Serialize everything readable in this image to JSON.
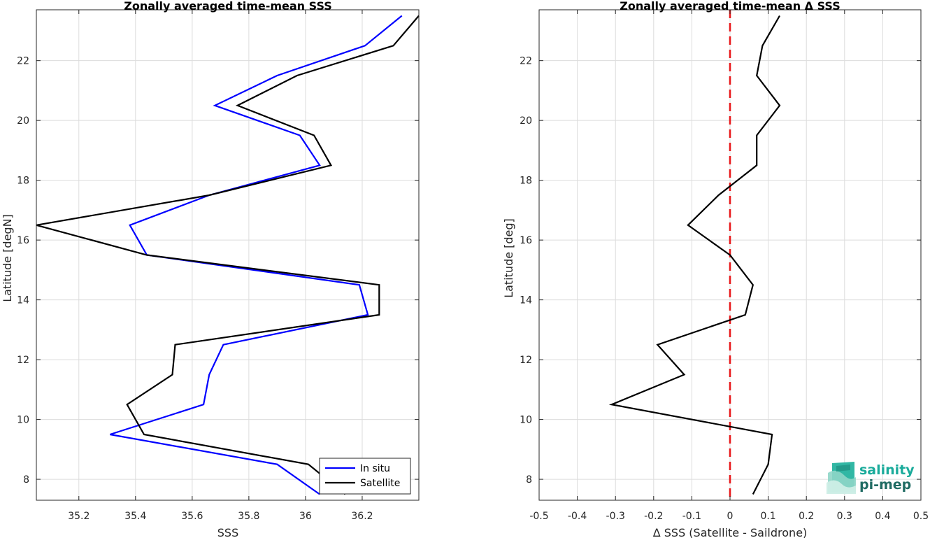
{
  "chart_data": [
    {
      "type": "line",
      "title": "Zonally averaged time-mean SSS",
      "xlabel": "SSS",
      "ylabel": "Latitude [degN]",
      "xlim": [
        35.05,
        36.4
      ],
      "ylim": [
        7.3,
        23.7
      ],
      "xticks": [
        35.2,
        35.4,
        35.6,
        35.8,
        36,
        36.2
      ],
      "xtick_labels": [
        "35.2",
        "35.4",
        "35.6",
        "35.8",
        "36",
        "36.2"
      ],
      "yticks": [
        8,
        10,
        12,
        14,
        16,
        18,
        20,
        22
      ],
      "ytick_labels": [
        "8",
        "10",
        "12",
        "14",
        "16",
        "18",
        "20",
        "22"
      ],
      "grid": true,
      "legend": "bottom-right",
      "series": [
        {
          "name": "In situ",
          "color": "#0000ff",
          "x": [
            36.05,
            35.9,
            35.31,
            35.64,
            35.66,
            35.71,
            36.22,
            36.19,
            35.44,
            35.38,
            35.66,
            36.05,
            35.98,
            35.68,
            35.9,
            36.21,
            36.34
          ],
          "y": [
            7.5,
            8.5,
            9.5,
            10.5,
            11.5,
            12.5,
            13.5,
            14.5,
            15.5,
            16.5,
            17.5,
            18.5,
            19.5,
            20.5,
            21.5,
            22.5,
            23.5
          ]
        },
        {
          "name": "Satellite",
          "color": "#000000",
          "x": [
            36.14,
            36.01,
            35.43,
            35.37,
            35.53,
            35.54,
            36.26,
            36.26,
            35.44,
            35.05,
            35.66,
            36.09,
            36.03,
            35.76,
            35.97,
            36.31,
            36.4
          ],
          "y": [
            7.5,
            8.5,
            9.5,
            10.5,
            11.5,
            12.5,
            13.5,
            14.5,
            15.5,
            16.5,
            17.5,
            18.5,
            19.5,
            20.5,
            21.5,
            22.5,
            23.5
          ]
        }
      ]
    },
    {
      "type": "line",
      "title": "Zonally averaged time-mean Δ SSS",
      "xlabel": "Δ SSS (Satellite - Saildrone)",
      "ylabel": "Latitude [deg]",
      "xlim": [
        -0.5,
        0.5
      ],
      "ylim": [
        7.3,
        23.7
      ],
      "xticks": [
        -0.5,
        -0.4,
        -0.3,
        -0.2,
        -0.1,
        0,
        0.1,
        0.2,
        0.3,
        0.4,
        0.5
      ],
      "xtick_labels": [
        "-0.5",
        "-0.4",
        "-0.3",
        "-0.2",
        "-0.1",
        "0",
        "0.1",
        "0.2",
        "0.3",
        "0.4",
        "0.5"
      ],
      "yticks": [
        8,
        10,
        12,
        14,
        16,
        18,
        20,
        22
      ],
      "ytick_labels": [
        "8",
        "10",
        "12",
        "14",
        "16",
        "18",
        "20",
        "22"
      ],
      "grid": true,
      "reference_line": {
        "x": 0,
        "color": "#e8191c",
        "style": "dashed"
      },
      "series": [
        {
          "color": "#000000",
          "x": [
            0.06,
            0.1,
            0.11,
            -0.31,
            -0.12,
            -0.19,
            0.04,
            0.06,
            0.0,
            -0.11,
            -0.03,
            0.07,
            0.07,
            0.13,
            0.07,
            0.085,
            0.13
          ],
          "y": [
            7.5,
            8.5,
            9.5,
            10.5,
            11.5,
            12.5,
            13.5,
            14.5,
            15.5,
            16.5,
            17.5,
            18.5,
            19.5,
            20.5,
            21.5,
            22.5,
            23.5
          ]
        }
      ]
    }
  ],
  "logo": {
    "line1": "salinity",
    "line2": "pi-mep",
    "colors": {
      "text1": "#1aab9b",
      "text2": "#1f6b63",
      "mark": "#26b39f"
    }
  }
}
